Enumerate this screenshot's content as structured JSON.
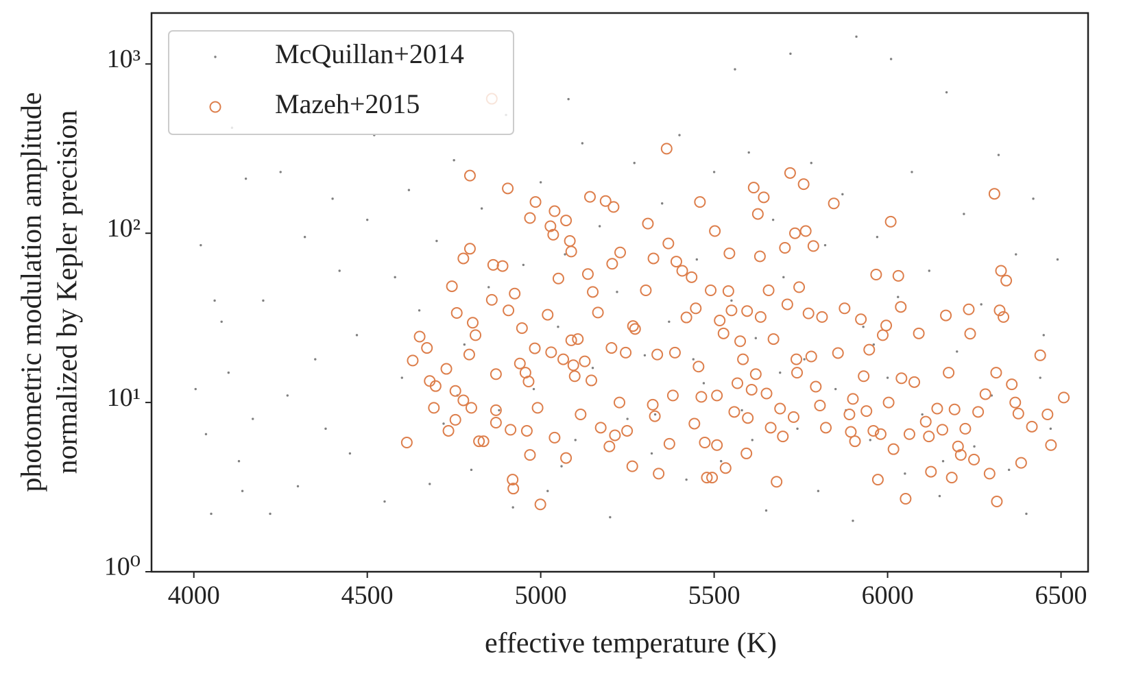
{
  "chart_data": {
    "type": "scatter",
    "xlabel": "effective temperature (K)",
    "ylabel": [
      "photometric modulation amplitude",
      "normalized by Kepler precision"
    ],
    "xlim": [
      3878,
      6578
    ],
    "ylim": [
      1,
      2000
    ],
    "yscale": "log",
    "grid": false,
    "legend": "upper left",
    "xticks": [
      4000,
      4500,
      5000,
      5500,
      6000,
      6500
    ],
    "yticks": [
      {
        "value": 1,
        "label": "10⁰"
      },
      {
        "value": 10,
        "label": "10¹"
      },
      {
        "value": 100,
        "label": "10²"
      },
      {
        "value": 1000,
        "label": "10³"
      }
    ],
    "series": [
      {
        "name": "McQuillan+2014",
        "color": "#808080",
        "marker": "point",
        "x": [
          4005,
          4020,
          4035,
          4050,
          4080,
          4100,
          4110,
          4130,
          4150,
          4170,
          4200,
          4220,
          4250,
          4270,
          4300,
          4320,
          4350,
          4380,
          4400,
          4420,
          4450,
          4470,
          4500,
          4520,
          4550,
          4580,
          4600,
          4620,
          4650,
          4680,
          4700,
          4720,
          4750,
          4780,
          4800,
          4830,
          4850,
          4880,
          4900,
          4920,
          4950,
          4980,
          5000,
          5020,
          5050,
          5070,
          5080,
          5100,
          5120,
          5150,
          5170,
          5200,
          5220,
          5250,
          5270,
          5300,
          5320,
          5350,
          5370,
          5400,
          5420,
          5450,
          5470,
          5500,
          5520,
          5550,
          5560,
          5580,
          5600,
          5620,
          5650,
          5670,
          5700,
          5720,
          5740,
          5760,
          5780,
          5800,
          5820,
          5850,
          5870,
          5900,
          5910,
          5930,
          5950,
          5970,
          6000,
          6010,
          6030,
          6050,
          6070,
          6100,
          6120,
          6150,
          6170,
          6200,
          6220,
          6250,
          6270,
          6300,
          6320,
          6350,
          6370,
          6400,
          6420,
          6450,
          6470,
          6490,
          4060,
          4140,
          4760,
          5060,
          5330,
          5610,
          5880,
          6160,
          6440,
          5440,
          5690,
          5960
        ],
        "values": [
          12,
          85,
          6.5,
          2.2,
          30,
          15,
          420,
          4.5,
          210,
          8,
          40,
          2.2,
          230,
          11,
          3.2,
          95,
          18,
          7,
          160,
          60,
          5,
          25,
          120,
          380,
          2.6,
          55,
          14,
          180,
          35,
          3.3,
          90,
          7.5,
          270,
          22,
          4,
          140,
          48,
          9,
          500,
          2.4,
          65,
          12,
          200,
          3,
          28,
          75,
          620,
          6,
          340,
          16,
          110,
          2.1,
          45,
          8,
          260,
          19,
          5,
          150,
          30,
          380,
          3.5,
          70,
          13,
          230,
          4.5,
          40,
          930,
          9,
          300,
          24,
          2.3,
          120,
          55,
          1150,
          7,
          18,
          260,
          3,
          85,
          12,
          170,
          2,
          1450,
          28,
          6,
          95,
          14,
          1070,
          42,
          3.8,
          230,
          8.5,
          60,
          2.8,
          680,
          20,
          130,
          5.5,
          38,
          11,
          290,
          4,
          75,
          2.2,
          160,
          25,
          7,
          70,
          40,
          3,
          11,
          4.2,
          8.5,
          6,
          9,
          4.5,
          14,
          18,
          15,
          22
        ]
      },
      {
        "name": "Mazeh+2015",
        "color": "#dd7e4b",
        "marker": "open-circle",
        "x": [
          4614,
          4631,
          4651,
          4672,
          4680,
          4692,
          4697,
          4728,
          4734,
          4744,
          4754,
          4758,
          4754,
          4777,
          4777,
          4796,
          4796,
          4794,
          4800,
          4804,
          4812,
          4822,
          4835,
          4859,
          4863,
          4871,
          4871,
          4871,
          4890,
          4905,
          4907,
          4913,
          4919,
          4921,
          4925,
          4940,
          4946,
          4956,
          4960,
          4965,
          4969,
          4969,
          4985,
          4983,
          4991,
          4999,
          5020,
          5028,
          5030,
          5036,
          5040,
          5040,
          5051,
          5065,
          5073,
          5073,
          5084,
          5088,
          5088,
          5094,
          5098,
          5107,
          5115,
          5127,
          5136,
          5142,
          5146,
          5150,
          5165,
          5173,
          5187,
          5198,
          5204,
          5210,
          5206,
          5214,
          5229,
          5227,
          5245,
          5249,
          5264,
          5266,
          5272,
          5303,
          5309,
          5323,
          5325,
          5329,
          5336,
          5340,
          5363,
          5368,
          5371,
          5381,
          5387,
          5391,
          5408,
          5420,
          5435,
          5443,
          5447,
          5455,
          5459,
          5463,
          5473,
          5479,
          5490,
          5494,
          5502,
          5508,
          5508,
          5516,
          5527,
          5533,
          5541,
          5544,
          5550,
          5558,
          5567,
          5575,
          5583,
          5593,
          5595,
          5597,
          5608,
          5614,
          5620,
          5626,
          5632,
          5634,
          5643,
          5651,
          5657,
          5663,
          5671,
          5680,
          5690,
          5698,
          5704,
          5711,
          5719,
          5729,
          5733,
          5737,
          5739,
          5745,
          5758,
          5764,
          5772,
          5780,
          5786,
          5793,
          5805,
          5811,
          5822,
          5845,
          5857,
          5876,
          5890,
          5894,
          5900,
          5906,
          5923,
          5931,
          5939,
          5947,
          5959,
          5967,
          5972,
          5980,
          5986,
          5996,
          6003,
          6009,
          6017,
          6031,
          6038,
          6040,
          6052,
          6063,
          6077,
          6090,
          6110,
          6119,
          6125,
          6143,
          6158,
          6168,
          6176,
          6185,
          6193,
          6203,
          6211,
          6224,
          6234,
          6238,
          6249,
          6261,
          6282,
          6294,
          6308,
          6313,
          6315,
          6323,
          6327,
          6334,
          6342,
          6358,
          6368,
          6377,
          6385,
          6416,
          6440,
          6461,
          6471,
          6508,
          4859
        ],
        "values": [
          5.8,
          17.7,
          24.5,
          21,
          13.4,
          9.3,
          12.5,
          15.8,
          6.8,
          48.6,
          11.7,
          33.8,
          7.9,
          71,
          10.3,
          219,
          81,
          19.2,
          9.3,
          29.6,
          25,
          5.9,
          5.9,
          40.4,
          65,
          14.7,
          9,
          7.6,
          64,
          184,
          35,
          6.9,
          3.5,
          3.1,
          44,
          17,
          27.5,
          15,
          6.8,
          13.3,
          4.9,
          123,
          153,
          20.9,
          9.3,
          2.5,
          33,
          110,
          19.8,
          98,
          135,
          6.2,
          54,
          18,
          119,
          4.7,
          90,
          78,
          23.3,
          16.6,
          14.3,
          23.7,
          8.5,
          17.5,
          57.4,
          164,
          13.5,
          45,
          34,
          7.1,
          155,
          5.5,
          21,
          143,
          66,
          6.4,
          77,
          10,
          19.7,
          6.8,
          4.2,
          28.3,
          27.2,
          46,
          114,
          9.7,
          71,
          8.3,
          19.2,
          3.8,
          316,
          87,
          5.7,
          11,
          19.7,
          68,
          60,
          31.8,
          55,
          7.5,
          36,
          16.3,
          153,
          10.8,
          5.8,
          3.6,
          46,
          3.6,
          103,
          11,
          5.6,
          30.5,
          25.6,
          4.1,
          45.5,
          76,
          35,
          8.8,
          13,
          23,
          18,
          5,
          34.7,
          8.1,
          11.9,
          186,
          14.7,
          130,
          73,
          32,
          163,
          11.3,
          46,
          7.1,
          23.7,
          3.4,
          9.2,
          6.3,
          82,
          38,
          227,
          8.2,
          100,
          18,
          15,
          48,
          195,
          103,
          33.6,
          18.7,
          84,
          12.4,
          9.6,
          32,
          7.1,
          150,
          19.6,
          36,
          8.5,
          6.7,
          10.5,
          5.9,
          31,
          14.3,
          8.9,
          20.5,
          6.8,
          57,
          3.5,
          6.5,
          25,
          28.5,
          10,
          117,
          5.3,
          56,
          36.7,
          13.9,
          2.7,
          6.5,
          13.2,
          25.6,
          7.7,
          6.3,
          3.9,
          9.2,
          6.9,
          32.7,
          15,
          3.6,
          9.1,
          5.5,
          4.9,
          7,
          35.5,
          25.5,
          4.6,
          8.8,
          11.2,
          3.8,
          171,
          15,
          2.6,
          35,
          60,
          32,
          52.5,
          12.8,
          10,
          8.6,
          4.4,
          7.2,
          19,
          8.5,
          5.6,
          10.7,
          623
        ]
      }
    ]
  }
}
